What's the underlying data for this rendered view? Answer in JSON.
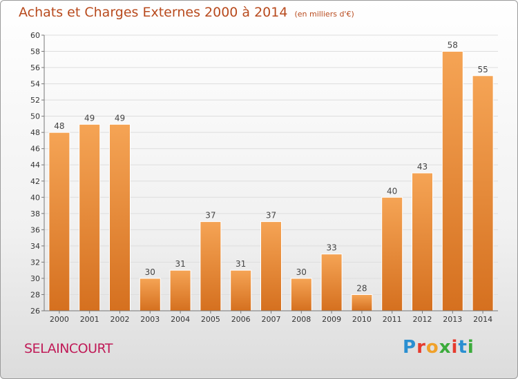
{
  "header": {
    "title": "Achats et Charges Externes 2000 à 2014",
    "unit": "(en milliers d'€)"
  },
  "footer": {
    "commune": "SELAINCOURT",
    "brand": {
      "letters": [
        "P",
        "r",
        "o",
        "x",
        "i",
        "t",
        "i"
      ],
      "colors": [
        "#2a8fd1",
        "#e63b2e",
        "#f0a12a",
        "#3bab3b",
        "#e63b2e",
        "#2a8fd1",
        "#3bab3b"
      ]
    }
  },
  "chart_data": {
    "type": "bar",
    "title": "Achats et Charges Externes 2000 à 2014",
    "xlabel": "",
    "ylabel": "",
    "categories": [
      "2000",
      "2001",
      "2002",
      "2003",
      "2004",
      "2005",
      "2006",
      "2007",
      "2008",
      "2009",
      "2010",
      "2011",
      "2012",
      "2013",
      "2014"
    ],
    "values": [
      48,
      49,
      49,
      30,
      31,
      37,
      31,
      37,
      30,
      33,
      28,
      40,
      43,
      58,
      55
    ],
    "ylim": [
      26,
      60
    ],
    "yticks": [
      26,
      28,
      30,
      32,
      34,
      36,
      38,
      40,
      42,
      44,
      46,
      48,
      50,
      52,
      54,
      56,
      58,
      60
    ],
    "grid": true,
    "bar_color": "#e8822e",
    "data_labels": true
  }
}
